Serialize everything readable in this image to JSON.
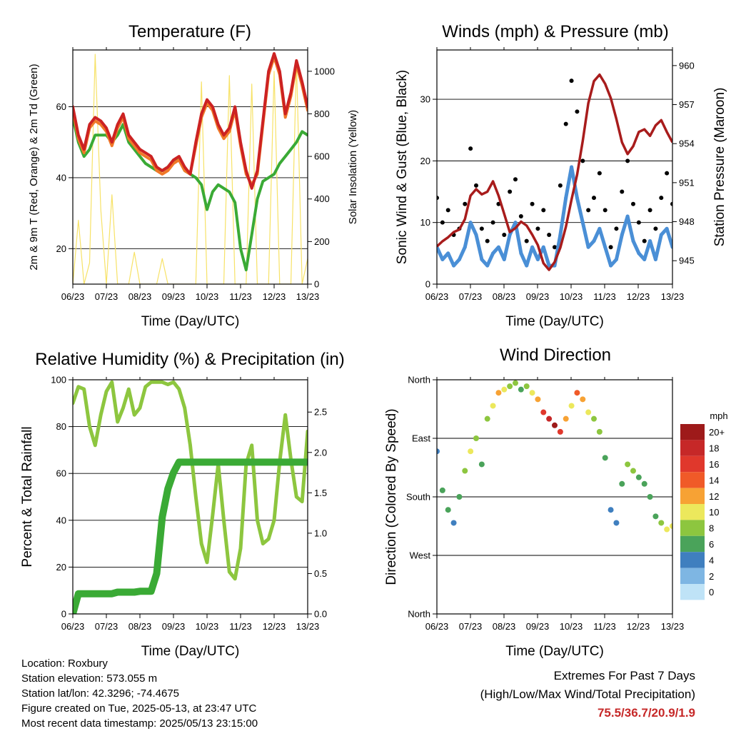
{
  "chart_data": [
    {
      "type": "line",
      "title": "Temperature (F)",
      "xlabel": "Time (Day/UTC)",
      "ylabel": "2m & 9m T (Red, Orange) & 2m Td (Green)",
      "ylabel_right": "Solar Insolation (Yellow)",
      "x_ticks": [
        "06/23",
        "07/23",
        "08/23",
        "09/23",
        "10/23",
        "11/23",
        "12/23",
        "13/23"
      ],
      "y_ticks": [
        "20",
        "40",
        "60"
      ],
      "y2_ticks": [
        "0",
        "200",
        "400",
        "600",
        "800",
        "1000"
      ],
      "ylim": [
        10,
        76
      ],
      "y2lim": [
        0,
        1100
      ],
      "grid": true,
      "series": [
        {
          "color": "#cc2222",
          "axis": "left",
          "values": [
            60,
            52,
            48,
            55,
            57,
            56,
            54,
            50,
            55,
            58,
            52,
            50,
            48,
            47,
            46,
            43,
            42,
            43,
            45,
            46,
            43,
            41,
            50,
            58,
            62,
            60,
            55,
            52,
            54,
            60,
            50,
            42,
            37,
            42,
            56,
            70,
            75,
            70,
            58,
            64,
            73,
            67,
            60
          ]
        },
        {
          "color": "#f07828",
          "axis": "left",
          "values": [
            59,
            51,
            47,
            54,
            56,
            55,
            53,
            49,
            54,
            57,
            51,
            49,
            47,
            46,
            45,
            42,
            41,
            42,
            44,
            45,
            42,
            41,
            49,
            57,
            61,
            59,
            54,
            51,
            53,
            59,
            49,
            41,
            38,
            41,
            55,
            69,
            74,
            69,
            57,
            63,
            72,
            66,
            59
          ]
        },
        {
          "color": "#3aaa35",
          "axis": "left",
          "values": [
            57,
            50,
            46,
            48,
            52,
            52,
            52,
            50,
            52,
            55,
            50,
            48,
            46,
            44,
            43,
            42,
            42,
            43,
            45,
            45,
            42,
            41,
            40,
            38,
            31,
            36,
            38,
            37,
            36,
            33,
            20,
            14,
            24,
            34,
            39,
            40,
            41,
            44,
            46,
            48,
            50,
            53,
            52
          ]
        },
        {
          "color": "#f7e267",
          "axis": "right",
          "values": [
            0,
            300,
            0,
            100,
            1080,
            350,
            0,
            420,
            0,
            0,
            0,
            150,
            0,
            0,
            0,
            0,
            120,
            0,
            0,
            0,
            0,
            0,
            0,
            950,
            0,
            0,
            0,
            0,
            980,
            0,
            0,
            0,
            940,
            0,
            0,
            0,
            1000,
            0,
            0,
            0,
            1050,
            0,
            120
          ]
        }
      ]
    },
    {
      "type": "scatter",
      "title": "Winds (mph) & Pressure (mb)",
      "xlabel": "Time (Day/UTC)",
      "ylabel": "Sonic Wind & Gust (Blue, Black)",
      "ylabel_right": "Station Pressure (Maroon)",
      "x_ticks": [
        "06/23",
        "07/23",
        "08/23",
        "09/23",
        "10/23",
        "11/23",
        "12/23",
        "13/23"
      ],
      "y_ticks": [
        "0",
        "10",
        "20",
        "30"
      ],
      "y2_ticks": [
        "945",
        "948",
        "951",
        "954",
        "957",
        "960"
      ],
      "ylim": [
        0,
        38
      ],
      "y2lim": [
        943.2,
        961.2
      ],
      "grid": true,
      "series": [
        {
          "color": "#000000",
          "axis": "left",
          "values": [
            14,
            10,
            12,
            8,
            9,
            13,
            22,
            16,
            9,
            7,
            10,
            13,
            8,
            15,
            17,
            11,
            7,
            13,
            9,
            12,
            8,
            6,
            16,
            26,
            33,
            28,
            20,
            12,
            14,
            18,
            12,
            6,
            9,
            15,
            20,
            13,
            10,
            7,
            12,
            9,
            14,
            18,
            13
          ]
        },
        {
          "color": "#4a8fd6",
          "axis": "left",
          "values": [
            6,
            4,
            5,
            3,
            4,
            6,
            10,
            8,
            4,
            3,
            5,
            6,
            4,
            8,
            10,
            5,
            3,
            6,
            4,
            6,
            3,
            3,
            8,
            14,
            19,
            14,
            10,
            6,
            7,
            9,
            6,
            3,
            4,
            8,
            11,
            7,
            5,
            4,
            7,
            4,
            8,
            9,
            6
          ]
        },
        {
          "color": "#a81c1c",
          "axis": "right",
          "values": [
            946.1,
            946.5,
            946.8,
            947.2,
            947.4,
            948.2,
            950.0,
            950.5,
            950.1,
            950.3,
            951.1,
            950.0,
            948.6,
            947.2,
            947.5,
            948.0,
            947.7,
            947.0,
            946.2,
            944.8,
            944.3,
            944.9,
            946.0,
            947.6,
            949.7,
            951.6,
            954.2,
            957.1,
            958.8,
            959.3,
            958.6,
            957.5,
            955.9,
            954.1,
            953.2,
            953.8,
            954.9,
            955.1,
            954.6,
            955.4,
            955.8,
            954.9,
            954.1
          ]
        }
      ]
    },
    {
      "type": "line",
      "title": "Relative Humidity (%) & Precipitation (in)",
      "xlabel": "Time (Day/UTC)",
      "ylabel": "Percent & Total Rainfall",
      "x_ticks": [
        "06/23",
        "07/23",
        "08/23",
        "09/23",
        "10/23",
        "11/23",
        "12/23",
        "13/23"
      ],
      "y_ticks": [
        "0",
        "20",
        "40",
        "60",
        "80",
        "100"
      ],
      "y2_ticks": [
        "0.0",
        "0.5",
        "1.0",
        "1.5",
        "2.0",
        "2.5"
      ],
      "ylim": [
        0,
        100
      ],
      "y2lim": [
        0,
        2.9
      ],
      "grid": true,
      "series": [
        {
          "color": "#8dc63f",
          "axis": "left",
          "values": [
            90,
            97,
            96,
            80,
            72,
            85,
            95,
            99,
            82,
            88,
            96,
            85,
            88,
            97,
            99,
            99,
            99,
            98,
            99,
            96,
            88,
            72,
            50,
            30,
            22,
            42,
            64,
            40,
            18,
            15,
            28,
            64,
            72,
            40,
            30,
            32,
            40,
            65,
            85,
            66,
            50,
            48,
            78
          ]
        },
        {
          "color": "#3aaa35",
          "axis": "right",
          "values": [
            0.0,
            0.25,
            0.25,
            0.25,
            0.25,
            0.25,
            0.25,
            0.25,
            0.27,
            0.27,
            0.27,
            0.27,
            0.28,
            0.28,
            0.28,
            0.5,
            1.2,
            1.55,
            1.75,
            1.88,
            1.88,
            1.88,
            1.88,
            1.88,
            1.88,
            1.88,
            1.88,
            1.88,
            1.88,
            1.88,
            1.88,
            1.88,
            1.88,
            1.88,
            1.88,
            1.88,
            1.88,
            1.88,
            1.88,
            1.88,
            1.88,
            1.88,
            1.88
          ]
        }
      ]
    },
    {
      "type": "scatter",
      "title": "Wind Direction",
      "xlabel": "Time (Day/UTC)",
      "ylabel": "Direction (Colored By Speed)",
      "x_ticks": [
        "06/23",
        "07/23",
        "08/23",
        "09/23",
        "10/23",
        "11/23",
        "12/23",
        "13/23"
      ],
      "y_ticks": [
        "North",
        "East",
        "South",
        "West",
        "North"
      ],
      "ylim": [
        0,
        360
      ],
      "grid": true,
      "legend": {
        "title": "mph",
        "labels": [
          "20+",
          "18",
          "16",
          "14",
          "12",
          "10",
          "8",
          "6",
          "4",
          "2",
          "0"
        ],
        "colors": [
          "#9e1a1a",
          "#c62828",
          "#e0382c",
          "#f05a28",
          "#f7a234",
          "#ece85c",
          "#8dc63f",
          "#4aa35a",
          "#3f7fbf",
          "#7eb6e3",
          "#bfe3f7"
        ]
      },
      "direction_values": [
        250,
        190,
        160,
        140,
        180,
        220,
        250,
        270,
        230,
        300,
        320,
        340,
        345,
        350,
        355,
        345,
        350,
        340,
        330,
        310,
        300,
        290,
        280,
        300,
        320,
        340,
        330,
        310,
        300,
        280,
        240,
        160,
        140,
        200,
        230,
        220,
        210,
        200,
        180,
        150,
        140,
        130,
        135
      ],
      "speed_values": [
        4,
        6,
        5,
        3,
        6,
        8,
        10,
        8,
        6,
        8,
        10,
        12,
        9,
        8,
        7,
        6,
        8,
        10,
        12,
        15,
        18,
        20,
        16,
        12,
        10,
        14,
        12,
        10,
        8,
        7,
        6,
        4,
        3,
        6,
        8,
        7,
        6,
        5,
        6,
        5,
        8,
        10,
        9
      ]
    }
  ],
  "info": {
    "location": "Location: Roxbury",
    "elevation": "Station elevation: 573.055 m",
    "latlon": "Station lat/lon: 42.3296; -74.4675",
    "created": "Figure created on Tue, 2025-05-13, at 23:47 UTC",
    "recent": "Most recent data timestamp: 2025/05/13 23:15:00"
  },
  "extremes": {
    "title": "Extremes For Past 7 Days",
    "subtitle": "(High/Low/Max Wind/Total Precipitation)",
    "value": "75.5/36.7/20.9/1.9"
  }
}
